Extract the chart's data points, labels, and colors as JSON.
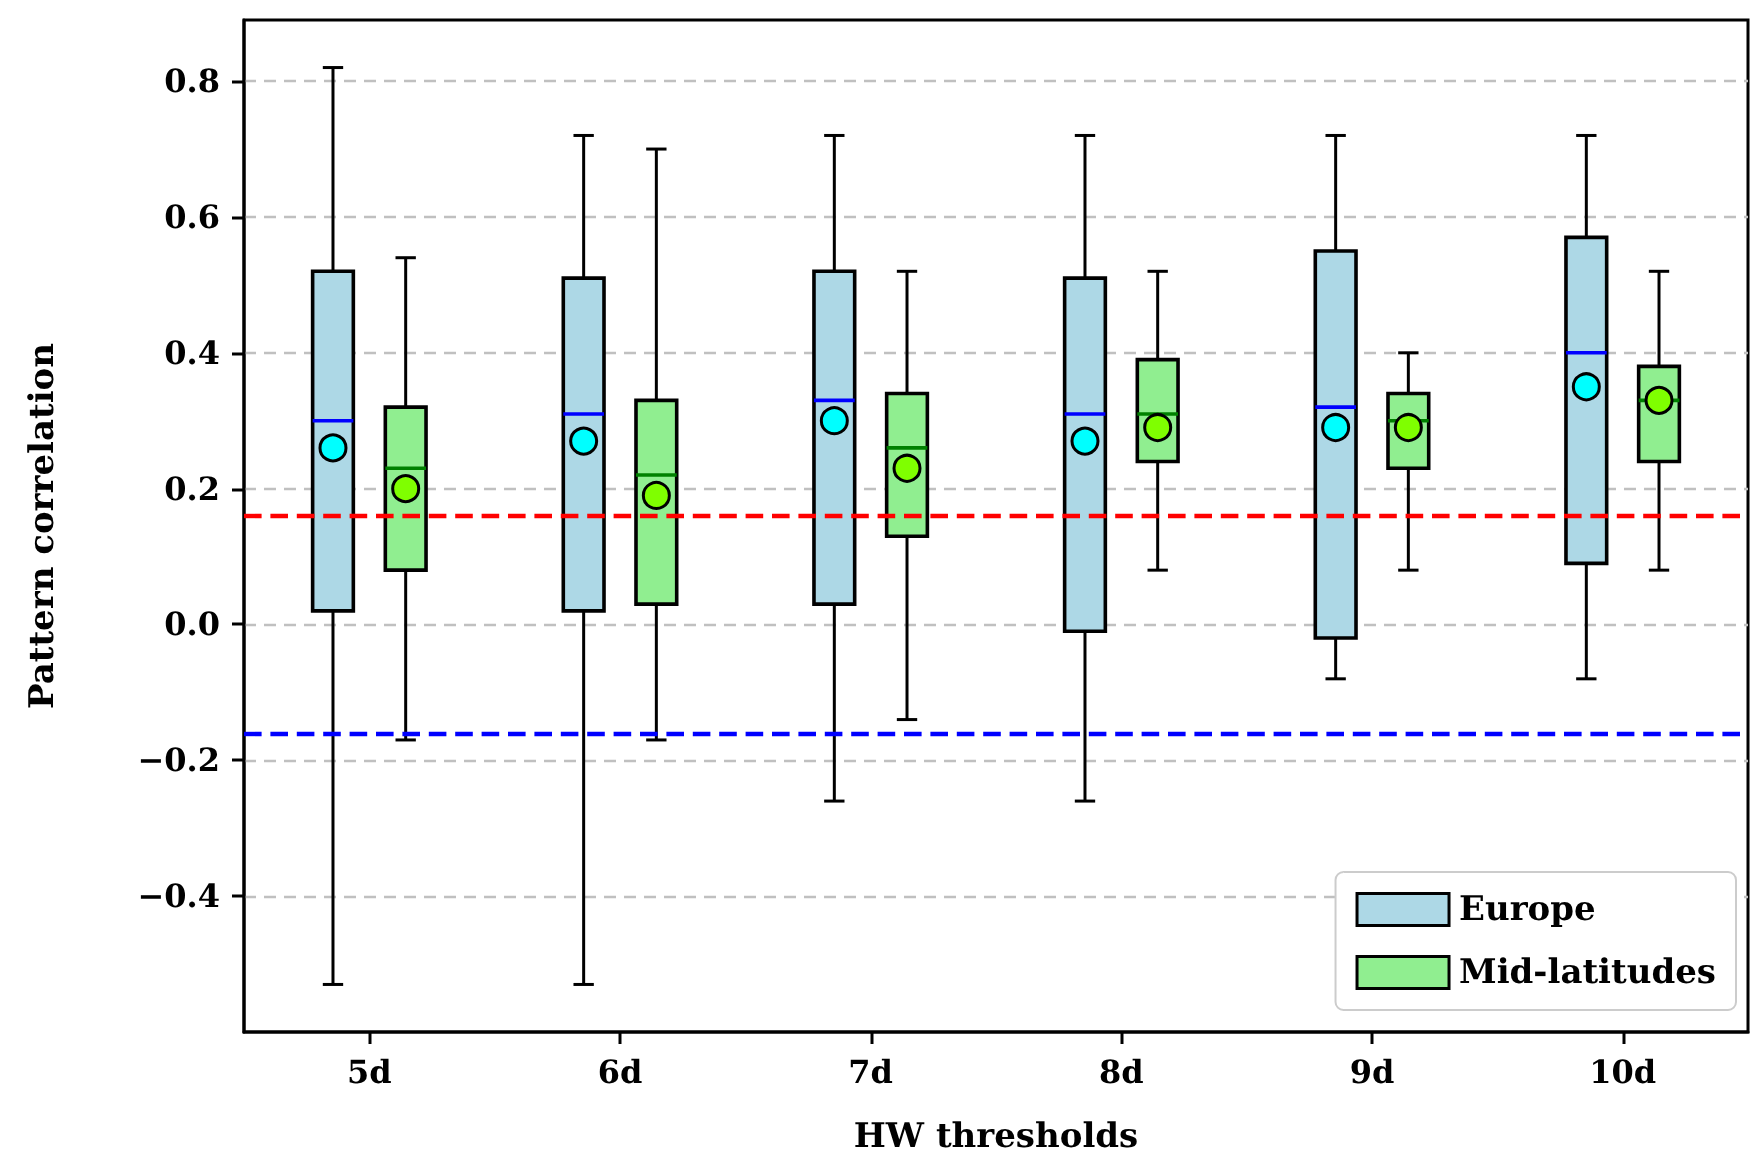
{
  "chart_data": {
    "type": "box",
    "xlabel": "HW thresholds",
    "ylabel": "Pattern correlation",
    "categories": [
      "5d",
      "6d",
      "7d",
      "8d",
      "9d",
      "10d"
    ],
    "series": [
      {
        "name": "Europe",
        "color": "#add8e6",
        "boxes": [
          {
            "low": -0.53,
            "q1": 0.02,
            "median": 0.3,
            "q3": 0.52,
            "high": 0.82,
            "mean": 0.26
          },
          {
            "low": -0.53,
            "q1": 0.02,
            "median": 0.31,
            "q3": 0.51,
            "high": 0.72,
            "mean": 0.27
          },
          {
            "low": -0.26,
            "q1": 0.03,
            "median": 0.33,
            "q3": 0.52,
            "high": 0.72,
            "mean": 0.3
          },
          {
            "low": -0.26,
            "q1": -0.01,
            "median": 0.31,
            "q3": 0.51,
            "high": 0.72,
            "mean": 0.27
          },
          {
            "low": -0.08,
            "q1": -0.02,
            "median": 0.32,
            "q3": 0.55,
            "high": 0.72,
            "mean": 0.29
          },
          {
            "low": -0.08,
            "q1": 0.09,
            "median": 0.4,
            "q3": 0.57,
            "high": 0.72,
            "mean": 0.35
          }
        ]
      },
      {
        "name": "Mid-latitudes",
        "color": "#90ee90",
        "boxes": [
          {
            "low": -0.17,
            "q1": 0.08,
            "median": 0.23,
            "q3": 0.32,
            "high": 0.54,
            "mean": 0.2
          },
          {
            "low": -0.17,
            "q1": 0.03,
            "median": 0.22,
            "q3": 0.33,
            "high": 0.7,
            "mean": 0.19
          },
          {
            "low": -0.14,
            "q1": 0.13,
            "median": 0.26,
            "q3": 0.34,
            "high": 0.52,
            "mean": 0.23
          },
          {
            "low": 0.08,
            "q1": 0.24,
            "median": 0.31,
            "q3": 0.39,
            "high": 0.52,
            "mean": 0.29
          },
          {
            "low": 0.08,
            "q1": 0.23,
            "median": 0.3,
            "q3": 0.34,
            "high": 0.4,
            "mean": 0.29
          },
          {
            "low": 0.08,
            "q1": 0.24,
            "median": 0.33,
            "q3": 0.38,
            "high": 0.52,
            "mean": 0.33
          }
        ]
      }
    ],
    "ylim": [
      -0.6,
      0.89
    ],
    "yticks": [
      {
        "value": -0.4,
        "label": "−0.4"
      },
      {
        "value": -0.2,
        "label": "−0.2"
      },
      {
        "value": 0.0,
        "label": "0.0"
      },
      {
        "value": 0.2,
        "label": "0.2"
      },
      {
        "value": 0.4,
        "label": "0.4"
      },
      {
        "value": 0.6,
        "label": "0.6"
      },
      {
        "value": 0.8,
        "label": "0.8"
      }
    ],
    "ref_lines": [
      {
        "axis": "y",
        "value": 0.16,
        "color": "#ff0000",
        "line_style": "dashed"
      },
      {
        "axis": "y",
        "value": -0.16,
        "color": "#0000ff",
        "line_style": "dashed"
      }
    ],
    "grid": "y",
    "legend": "bottom right",
    "marker": "circle"
  }
}
